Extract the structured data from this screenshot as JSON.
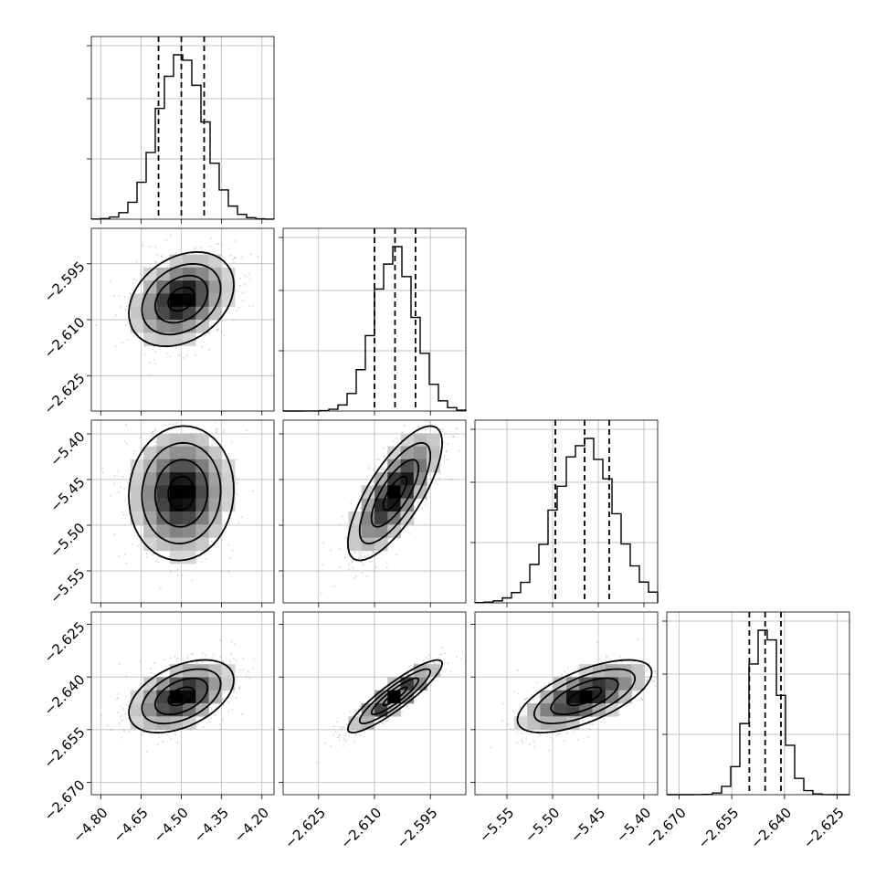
{
  "chart_data": {
    "type": "corner",
    "n_params": 4,
    "grid": true,
    "params": [
      {
        "mean": -4.5,
        "sigma": 0.085,
        "range": [
          -4.835,
          -4.155
        ],
        "ticks": [
          -4.8,
          -4.65,
          -4.5,
          -4.35,
          -4.2
        ],
        "tick_labels": [
          "−4.80",
          "−4.65",
          "−4.50",
          "−4.35",
          "−4.20"
        ],
        "quantiles": [
          -4.585,
          -4.5,
          -4.415
        ]
      },
      {
        "mean": -2.6045,
        "sigma": 0.0055,
        "range": [
          -2.6345,
          -2.5855
        ],
        "ticks": [
          -2.625,
          -2.61,
          -2.595
        ],
        "tick_labels": [
          "−2.625",
          "−2.610",
          "−2.595"
        ],
        "quantiles": [
          -2.61,
          -2.6045,
          -2.599
        ]
      },
      {
        "mean": -5.465,
        "sigma": 0.032,
        "range": [
          -5.585,
          -5.385
        ],
        "ticks": [
          -5.55,
          -5.5,
          -5.45,
          -5.4
        ],
        "tick_labels": [
          "−5.55",
          "−5.50",
          "−5.45",
          "−5.40"
        ],
        "quantiles": [
          -5.497,
          -5.465,
          -5.438
        ]
      },
      {
        "mean": -2.6455,
        "sigma": 0.0045,
        "range": [
          -2.6735,
          -2.6215
        ],
        "ticks": [
          -2.67,
          -2.655,
          -2.64,
          -2.625
        ],
        "tick_labels": [
          "−2.670",
          "−2.655",
          "−2.640",
          "−2.625"
        ],
        "quantiles": [
          -2.65,
          -2.6455,
          -2.641
        ]
      }
    ],
    "correlations": [
      [
        1.0,
        0.3,
        0.05,
        0.45
      ],
      [
        0.3,
        1.0,
        0.75,
        0.9
      ],
      [
        0.05,
        0.75,
        1.0,
        0.65
      ],
      [
        0.45,
        0.9,
        0.65,
        1.0
      ]
    ],
    "histogram_bins": 20,
    "contour_levels_sigma": [
      0.5,
      1.0,
      1.5,
      2.0
    ]
  },
  "colors": {
    "line": "#000000",
    "grid": "#b0b0b0",
    "points": "#9a9a9a"
  }
}
